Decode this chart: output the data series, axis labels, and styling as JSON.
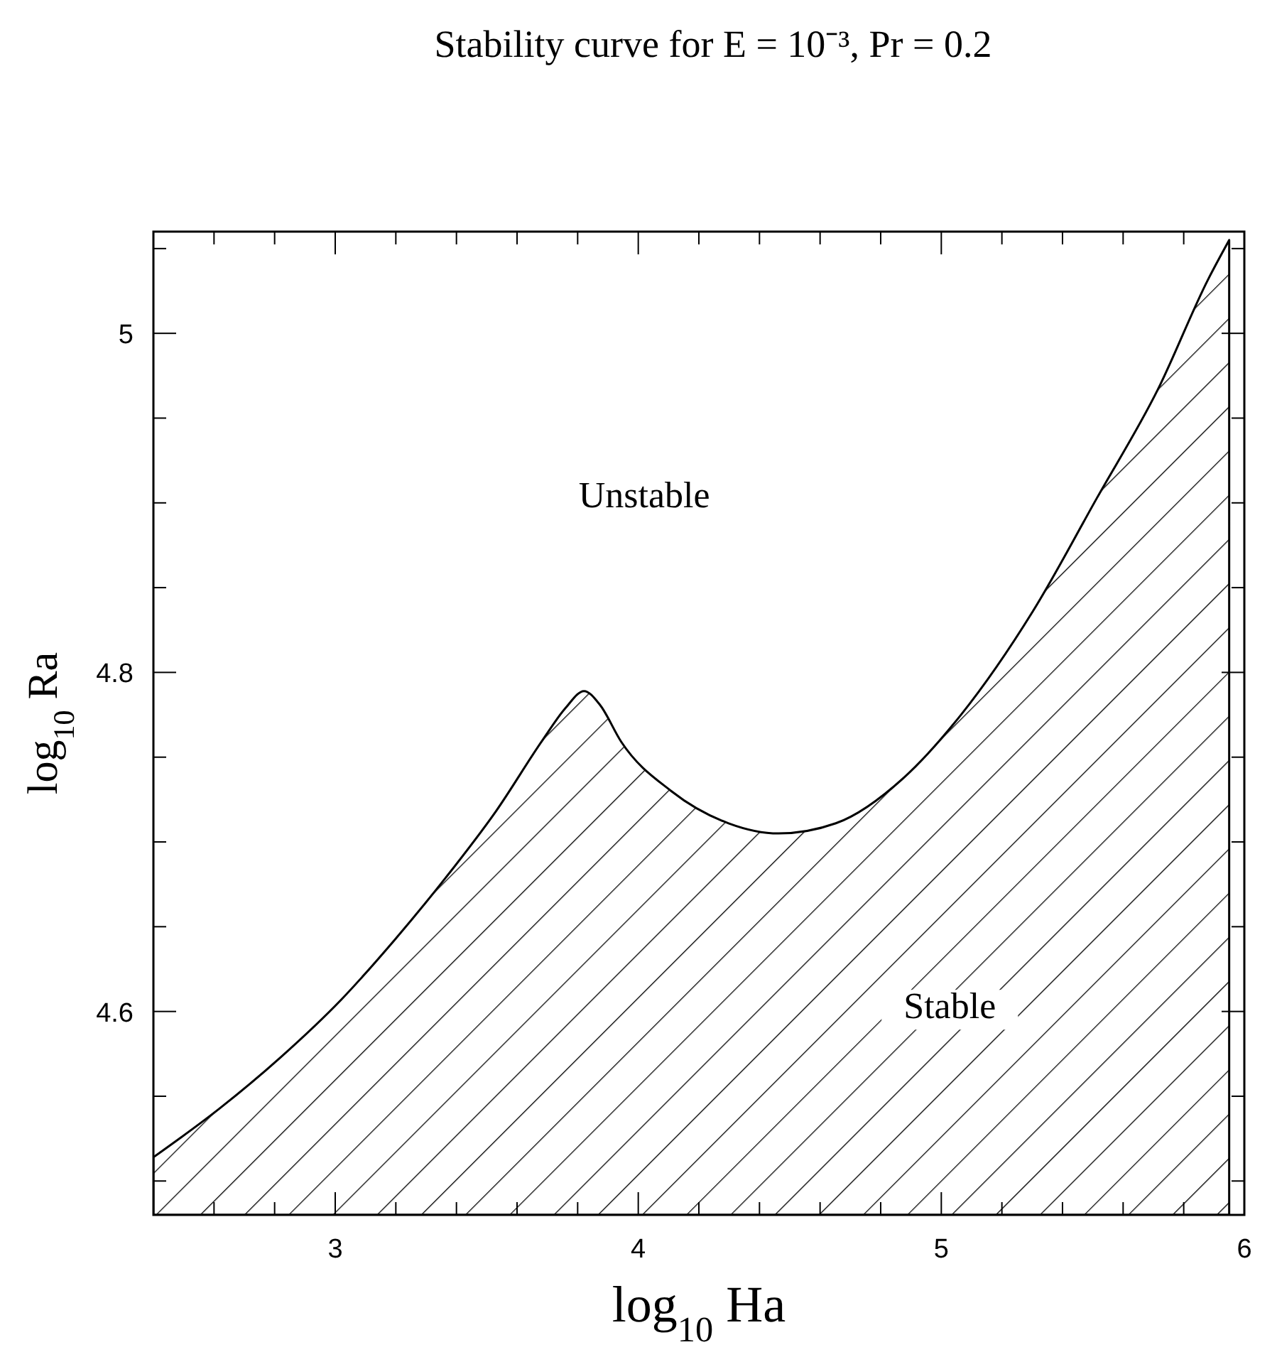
{
  "chart_data": {
    "type": "area",
    "title": "Stability curve for E = 10⁻³, Pr = 0.2",
    "xlabel": "log$_{10}$ Ha",
    "ylabel": "log$_{10}$ Ra",
    "xlim": [
      2.4,
      6
    ],
    "ylim": [
      4.48,
      5.06
    ],
    "xticks": [
      {
        "value": 2.6,
        "label": null
      },
      {
        "value": 2.8,
        "label": null
      },
      3,
      {
        "value": 3.2,
        "label": null
      },
      {
        "value": 3.4,
        "label": null
      },
      {
        "value": 3.6,
        "label": null
      },
      {
        "value": 3.8,
        "label": null
      },
      4,
      {
        "value": 4.2,
        "label": null
      },
      {
        "value": 4.4,
        "label": null
      },
      {
        "value": 4.6,
        "label": null
      },
      {
        "value": 4.8,
        "label": null
      },
      5,
      {
        "value": 5.2,
        "label": null
      },
      {
        "value": 5.4,
        "label": null
      },
      {
        "value": 5.6,
        "label": null
      },
      {
        "value": 5.8,
        "label": null
      },
      6
    ],
    "yticks": [
      {
        "value": 4.5,
        "label": null
      },
      {
        "value": 4.55,
        "label": null
      },
      4.6,
      {
        "value": 4.65,
        "label": null
      },
      {
        "value": 4.7,
        "label": null
      },
      {
        "value": 4.75,
        "label": null
      },
      4.8,
      {
        "value": 4.85,
        "label": null
      },
      {
        "value": 4.9,
        "label": null
      },
      {
        "value": 4.95,
        "label": null
      },
      5,
      {
        "value": 5.05,
        "label": null
      }
    ],
    "annotations": [
      "Unstable",
      "Stable"
    ],
    "series": [
      {
        "color": "#000000",
        "x": [
          2.4,
          2.62,
          2.82,
          3.02,
          3.195,
          3.365,
          3.53,
          3.684,
          3.76,
          3.821,
          3.873,
          3.944,
          4.109,
          4.298,
          4.463,
          4.652,
          4.877,
          5.065,
          5.302,
          5.514,
          5.715,
          5.881,
          5.95
        ],
        "values": [
          4.514,
          4.543,
          4.573,
          4.607,
          4.642,
          4.679,
          4.718,
          4.76,
          4.779,
          4.789,
          4.781,
          4.759,
          4.73,
          4.711,
          4.705,
          4.711,
          4.738,
          4.775,
          4.836,
          4.903,
          4.967,
          5.032,
          5.055
        ]
      }
    ]
  }
}
